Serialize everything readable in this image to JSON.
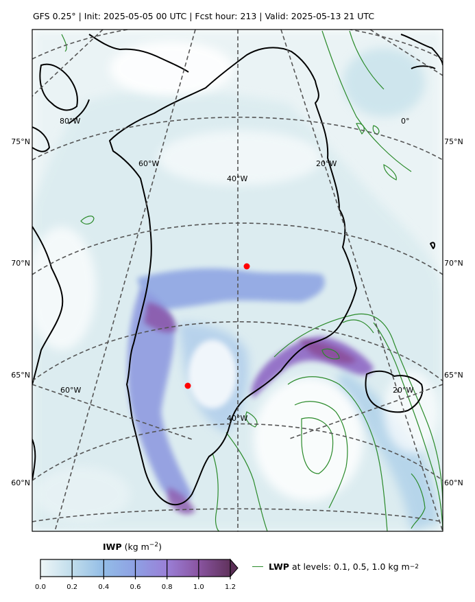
{
  "title": "GFS 0.25°  |  Init: 2025-05-05 00 UTC  |  Fcst hour: 213  |  Valid: 2025-05-13 21 UTC",
  "map": {
    "lat_labels_left": [
      "75°N",
      "70°N",
      "65°N",
      "60°N"
    ],
    "lat_labels_right": [
      "75°N",
      "70°N",
      "65°N",
      "60°N"
    ],
    "lon_labels": [
      "80°W",
      "60°W",
      "40°W",
      "20°W",
      "0°",
      "60°W",
      "40°W",
      "20°W"
    ],
    "markers": [
      {
        "name": "marker-north",
        "color": "#ff0000"
      },
      {
        "name": "marker-south",
        "color": "#ff0000"
      }
    ],
    "gridline_color": "#555555",
    "coastline_color": "#000000",
    "lwp_contour_color": "#2a8a2a"
  },
  "colorbar": {
    "label_bold": "IWP",
    "label_unit": "(kg m",
    "label_exp": "−2",
    "label_close": ")",
    "ticks": [
      "0.0",
      "0.2",
      "0.4",
      "0.6",
      "0.8",
      "1.0",
      "1.2"
    ],
    "colors": [
      "#e6f2f4",
      "#a9d1e6",
      "#8fb4e6",
      "#9a87da",
      "#8e5fae",
      "#6a3a66"
    ]
  },
  "lwp_legend": {
    "bold": "LWP",
    "text": "at levels: 0.1, 0.5, 1.0  kg m",
    "exp": "−2"
  },
  "chart_data": {
    "type": "heatmap",
    "title": "GFS 0.25°  |  Init: 2025-05-05 00 UTC  |  Fcst hour: 213  |  Valid: 2025-05-13 21 UTC",
    "field": "IWP",
    "units": "kg m−2",
    "colorbar_range": [
      0.0,
      1.2
    ],
    "contour_field": "LWP",
    "contour_levels": [
      0.1,
      0.5,
      1.0
    ],
    "latitudes_labeled": [
      75,
      70,
      65,
      60
    ],
    "longitudes_labeled": [
      -80,
      -60,
      -40,
      -20,
      0
    ]
  }
}
